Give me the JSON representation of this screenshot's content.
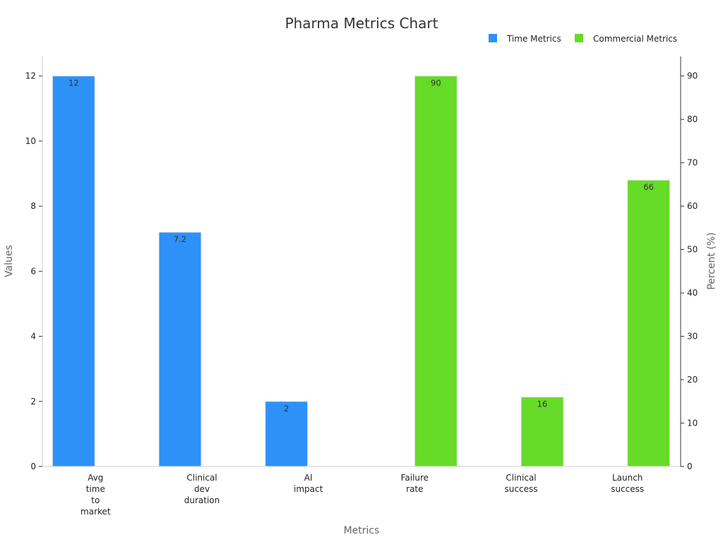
{
  "chart_data": {
    "type": "bar",
    "title": "Pharma Metrics Chart",
    "xlabel": "Metrics",
    "ylabel": "Values",
    "y2label": "Percent (%)",
    "ylim": [
      0,
      12.6
    ],
    "y2lim": [
      0,
      94.5
    ],
    "yticks": [
      "0",
      "2",
      "4",
      "6",
      "8",
      "10",
      "12"
    ],
    "y2ticks": [
      "0",
      "10",
      "20",
      "30",
      "40",
      "50",
      "60",
      "70",
      "80",
      "90"
    ],
    "categories": [
      [
        "Avg",
        "time",
        "to",
        "market"
      ],
      [
        "Clinical",
        "dev",
        "duration"
      ],
      [
        "AI",
        "impact"
      ],
      [
        "Failure",
        "rate"
      ],
      [
        "Clinical",
        "success"
      ],
      [
        "Launch",
        "success"
      ]
    ],
    "legend_position": "top-right",
    "series": [
      {
        "name": "Time Metrics",
        "color": "#2E91F8",
        "axis": "left",
        "values": [
          12,
          7.2,
          2,
          null,
          null,
          null
        ],
        "labels": [
          "12",
          "7.2",
          "2",
          "",
          "",
          ""
        ]
      },
      {
        "name": "Commercial Metrics",
        "color": "#66DB28",
        "axis": "right",
        "values": [
          null,
          null,
          null,
          90,
          16,
          66
        ],
        "labels": [
          "",
          "",
          "",
          "90",
          "16",
          "66"
        ]
      }
    ]
  }
}
